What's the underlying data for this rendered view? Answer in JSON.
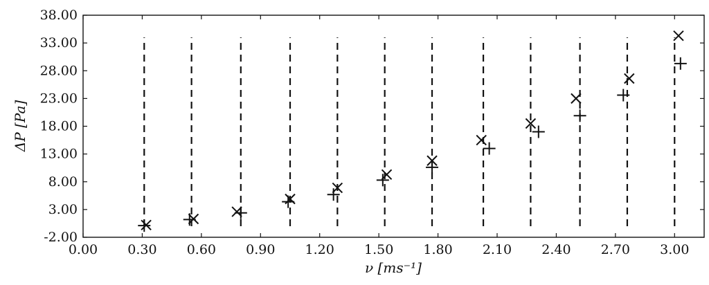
{
  "chart_data": {
    "type": "scatter",
    "xlabel": "ν [ms⁻¹]",
    "ylabel": "ΔP [Pa]",
    "xlim": [
      0.0,
      3.15
    ],
    "ylim": [
      -2.0,
      38.0
    ],
    "x_ticks": [
      "0.00",
      "0.30",
      "0.60",
      "0.90",
      "1.20",
      "1.50",
      "1.80",
      "2.10",
      "2.40",
      "2.70",
      "3.00"
    ],
    "y_ticks": [
      "-2.00",
      "3.00",
      "8.00",
      "13.00",
      "18.00",
      "23.00",
      "28.00",
      "33.00",
      "38.00"
    ],
    "grid": false,
    "legend": "none",
    "vertical_reference_lines": {
      "style": "dashed",
      "x": [
        0.31,
        0.55,
        0.8,
        1.05,
        1.29,
        1.53,
        1.77,
        2.03,
        2.27,
        2.52,
        2.76,
        3.0
      ],
      "y_range": [
        0.0,
        34.0
      ]
    },
    "series": [
      {
        "marker": "x",
        "x": [
          0.32,
          0.56,
          0.78,
          1.05,
          1.29,
          1.54,
          1.77,
          2.02,
          2.27,
          2.5,
          2.77,
          3.02
        ],
        "y": [
          0.2,
          1.3,
          2.6,
          4.9,
          6.9,
          9.3,
          11.8,
          15.5,
          18.5,
          23.0,
          26.6,
          34.3
        ]
      },
      {
        "marker": "+",
        "x": [
          0.31,
          0.54,
          0.8,
          1.04,
          1.27,
          1.52,
          1.77,
          2.06,
          2.31,
          2.52,
          2.74,
          3.03
        ],
        "y": [
          0.1,
          1.2,
          2.4,
          4.4,
          5.7,
          8.3,
          10.6,
          14.0,
          17.0,
          19.9,
          23.6,
          29.3
        ]
      }
    ]
  }
}
